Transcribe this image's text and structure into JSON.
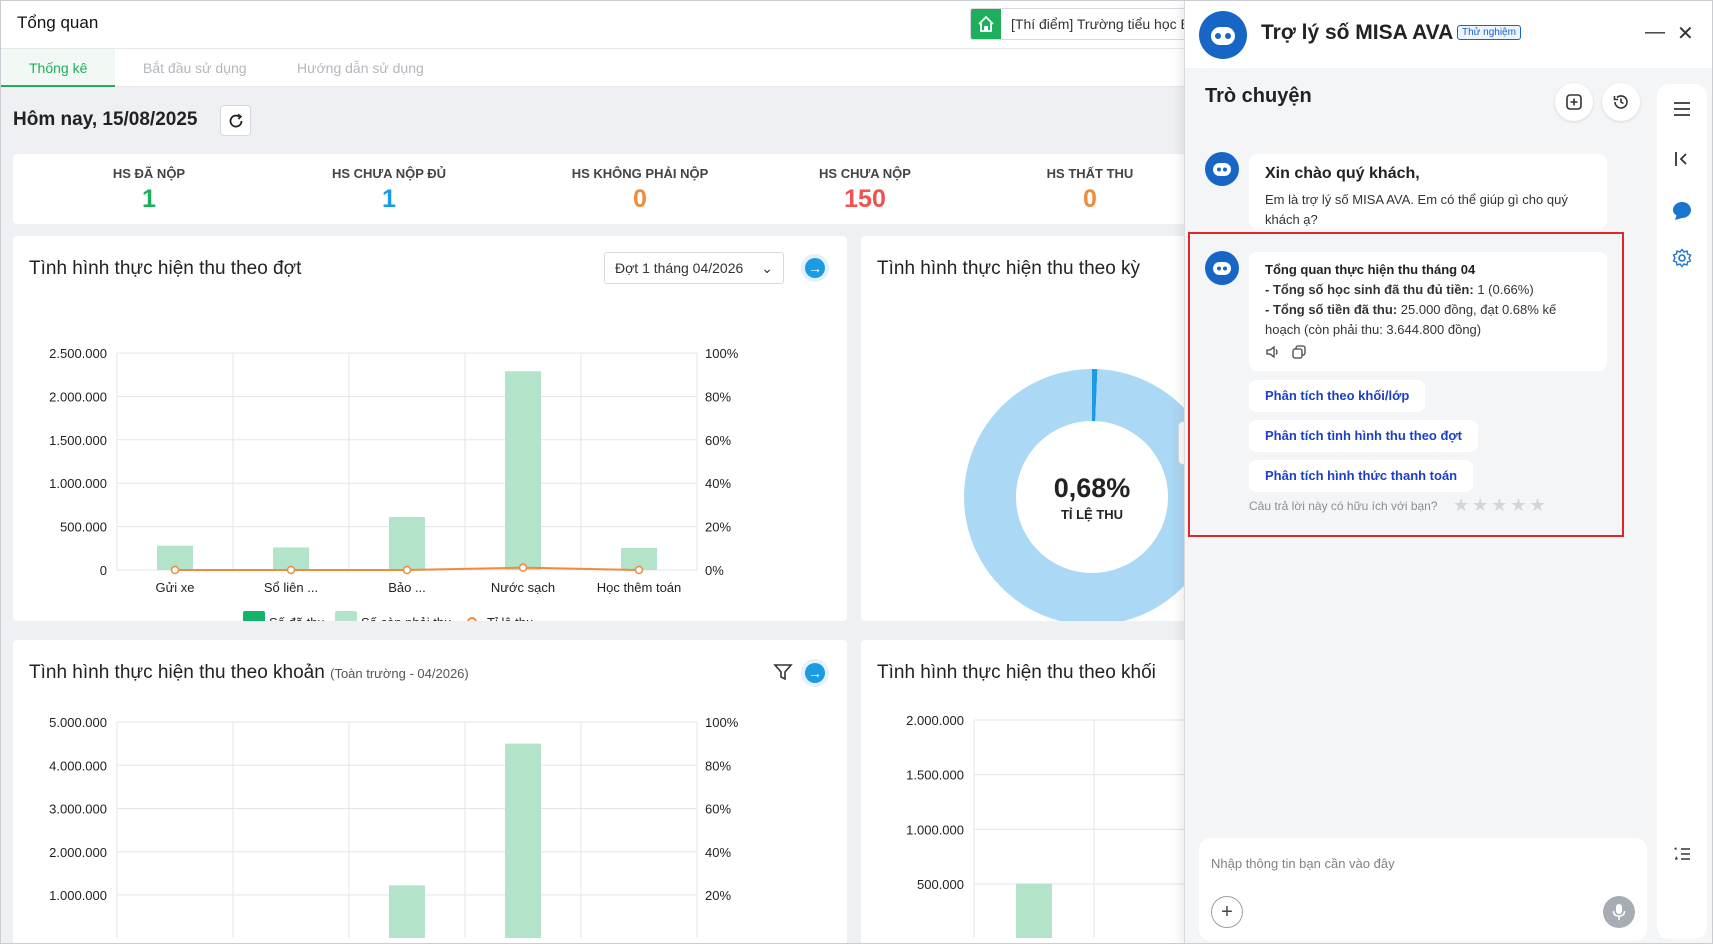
{
  "header": {
    "title": "Tổng quan",
    "school": "[Thí điểm] Trường tiểu học E"
  },
  "tabs": [
    "Thống kê",
    "Bắt đầu sử dụng",
    "Hướng dẫn sử dụng"
  ],
  "date_label": "Hôm nay, 15/08/2025",
  "stats": [
    {
      "label": "HS ĐÃ NỘP",
      "value": "1",
      "color": "#1fae5b"
    },
    {
      "label": "HS CHƯA NỘP ĐỦ",
      "value": "1",
      "color": "#1b9be3"
    },
    {
      "label": "HS KHÔNG PHẢI NỘP",
      "value": "0",
      "color": "#f08a3c"
    },
    {
      "label": "HS CHƯA NỘP",
      "value": "150",
      "color": "#ef5350"
    },
    {
      "label": "HS THẤT THU",
      "value": "0",
      "color": "#f08a3c"
    }
  ],
  "cards": {
    "dot": {
      "title": "Tình hình thực hiện thu theo đợt",
      "dropdown": "Đợt 1 tháng 04/2026"
    },
    "ky": {
      "title": "Tình hình thực hiện thu theo kỳ",
      "donut_value": "0,68%",
      "donut_label": "TỈ LỆ THU"
    },
    "khoan": {
      "title": "Tình hình thực hiện thu theo khoản",
      "subtitle": "(Toàn trường - 04/2026)"
    },
    "khoi": {
      "title": "Tình hình thực hiện thu theo khối"
    }
  },
  "chart_data": [
    {
      "type": "bar",
      "categories": [
        "Gửi xe",
        "Sổ liên ...",
        "Bảo ...",
        "Nước sạch",
        "Học thêm toán"
      ],
      "series": [
        {
          "name": "Số đã thu",
          "values": [
            0,
            0,
            0,
            25000,
            0
          ],
          "color": "#13b36b"
        },
        {
          "name": "Số còn phải thu",
          "values": [
            280000,
            260000,
            610000,
            2290000,
            255000
          ],
          "color": "#b3e3c9"
        },
        {
          "name": "Tỉ lệ thu",
          "values": [
            0,
            0,
            0,
            1.08,
            0
          ],
          "color": "#f08a3c",
          "axis": "right"
        }
      ],
      "y_ticks": [
        "2.500.000",
        "2.000.000",
        "1.500.000",
        "1.000.000",
        "500.000",
        "0"
      ],
      "y2_ticks": [
        "100%",
        "80%",
        "60%",
        "40%",
        "20%",
        "0%"
      ],
      "ylim": [
        0,
        2500000
      ],
      "y2lim": [
        0,
        100
      ]
    },
    {
      "type": "pie",
      "values": [
        0.68,
        99.32
      ],
      "colors": [
        "#1b9be3",
        "#abd8f5"
      ]
    },
    {
      "type": "bar",
      "categories": [
        "",
        "",
        "",
        "",
        ""
      ],
      "series": [
        {
          "name": "Số còn phải thu",
          "values": [
            0,
            0,
            1220000,
            4500000,
            0
          ],
          "color": "#b3e3c9"
        }
      ],
      "y_ticks": [
        "5.000.000",
        "4.000.000",
        "3.000.000",
        "2.000.000",
        "1.000.000"
      ],
      "y2_ticks": [
        "100%",
        "80%",
        "60%",
        "40%",
        "20%"
      ],
      "ylim": [
        0,
        5000000
      ]
    },
    {
      "type": "bar",
      "categories": [
        "",
        ""
      ],
      "series": [
        {
          "name": "Số còn phải thu",
          "values": [
            500000,
            0
          ],
          "color": "#b3e3c9"
        }
      ],
      "y_ticks": [
        "2.000.000",
        "1.500.000",
        "1.000.000",
        "500.000"
      ],
      "ylim": [
        0,
        2000000
      ]
    }
  ],
  "chat": {
    "title": "Trợ lý số MISA AVA",
    "badge": "Thử nghiệm",
    "conversation_title": "Trò chuyện",
    "greeting_title": "Xin chào quý khách,",
    "greeting_body": "Em là trợ lý số MISA AVA. Em có thể giúp gì cho quý khách ạ?",
    "summary_title": "Tổng quan thực hiện thu tháng 04",
    "summary_line1_label": "- Tổng số học sinh đã thu đủ tiền:",
    "summary_line1_value": " 1 (0.66%)",
    "summary_line2_label": "- Tổng số tiền đã thu:",
    "summary_line2_value": " 25.000 đồng, đạt 0.68% kế hoạch (còn phải thu: 3.644.800 đồng)",
    "suggestions": [
      "Phân tích theo khối/lớp",
      "Phân tích tình hình thu theo đợt",
      "Phân tích hình thức thanh toán"
    ],
    "feedback": "Câu trả lời này có hữu ích với bạn?",
    "stars": "★★★★★",
    "input_placeholder": "Nhập thông tin bạn cần vào đây"
  }
}
